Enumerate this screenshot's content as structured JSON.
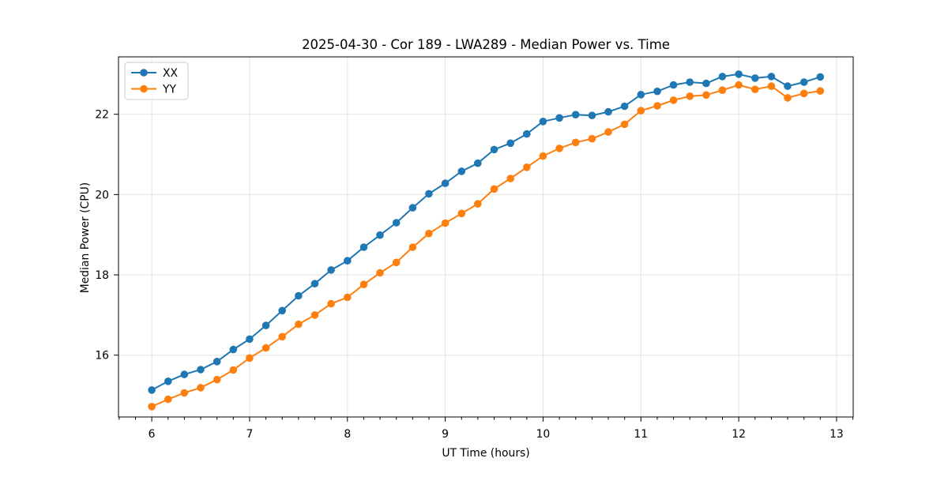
{
  "figure": {
    "background_color": "#ffffff",
    "plot_border_color": "#000000",
    "grid_color": "#e3e3e3"
  },
  "chart_data": {
    "type": "line",
    "title": "2025-04-30 - Cor 189 - LWA289 - Median Power vs. Time",
    "xlabel": "UT Time (hours)",
    "ylabel": "Median Power (CPU)",
    "xlim": [
      5.66,
      13.17
    ],
    "ylim": [
      14.46,
      23.43
    ],
    "x_major_ticks": [
      6,
      7,
      8,
      9,
      10,
      11,
      12,
      13
    ],
    "y_major_ticks": [
      16,
      18,
      20,
      22
    ],
    "x_minor_step_hours": 0.16667,
    "grid": true,
    "legend": {
      "position": "upper left",
      "entries": [
        "XX",
        "YY"
      ]
    },
    "x": [
      6.0,
      6.167,
      6.333,
      6.5,
      6.667,
      6.833,
      7.0,
      7.167,
      7.333,
      7.5,
      7.667,
      7.833,
      8.0,
      8.167,
      8.333,
      8.5,
      8.667,
      8.833,
      9.0,
      9.167,
      9.333,
      9.5,
      9.667,
      9.833,
      10.0,
      10.167,
      10.333,
      10.5,
      10.667,
      10.833,
      11.0,
      11.167,
      11.333,
      11.5,
      11.667,
      11.833,
      12.0,
      12.167,
      12.333,
      12.5,
      12.667,
      12.833
    ],
    "series": [
      {
        "name": "XX",
        "color": "#1f77b4",
        "marker": "o",
        "values": [
          15.13,
          15.35,
          15.52,
          15.64,
          15.84,
          16.14,
          16.4,
          16.74,
          17.11,
          17.48,
          17.78,
          18.12,
          18.35,
          18.69,
          18.99,
          19.3,
          19.67,
          20.02,
          20.28,
          20.58,
          20.78,
          21.12,
          21.28,
          21.51,
          21.82,
          21.91,
          21.99,
          21.97,
          22.06,
          22.2,
          22.49,
          22.57,
          22.73,
          22.8,
          22.77,
          22.94,
          23.0,
          22.9,
          22.94,
          22.7,
          22.8,
          22.93
        ]
      },
      {
        "name": "YY",
        "color": "#ff7f0e",
        "marker": "o",
        "values": [
          14.72,
          14.9,
          15.06,
          15.19,
          15.39,
          15.63,
          15.93,
          16.18,
          16.46,
          16.77,
          17.0,
          17.28,
          17.44,
          17.76,
          18.05,
          18.31,
          18.69,
          19.03,
          19.29,
          19.53,
          19.77,
          20.14,
          20.4,
          20.68,
          20.96,
          21.15,
          21.3,
          21.39,
          21.56,
          21.75,
          22.09,
          22.21,
          22.35,
          22.45,
          22.48,
          22.6,
          22.73,
          22.62,
          22.7,
          22.41,
          22.52,
          22.58
        ]
      }
    ]
  }
}
